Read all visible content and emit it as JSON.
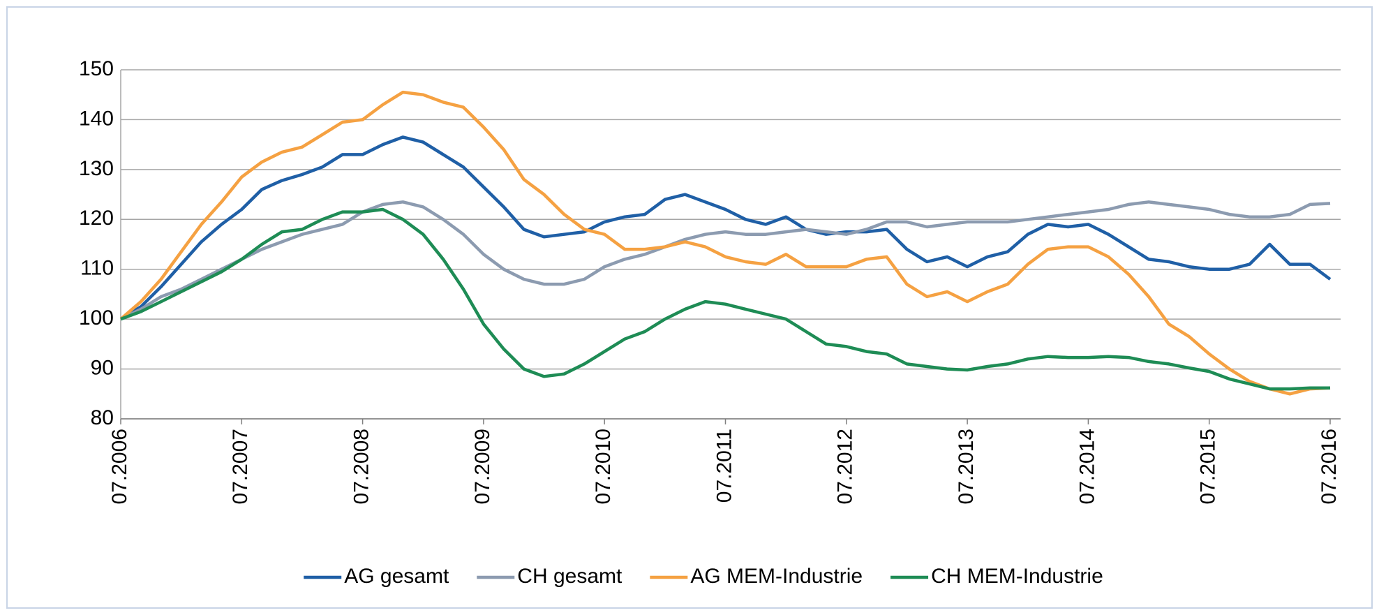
{
  "chart_data": {
    "type": "line",
    "categories": [
      "07.2006",
      null,
      null,
      null,
      null,
      null,
      "07.2007",
      null,
      null,
      null,
      null,
      null,
      "07.2008",
      null,
      null,
      null,
      null,
      null,
      "07.2009",
      null,
      null,
      null,
      null,
      null,
      "07.2010",
      null,
      null,
      null,
      null,
      null,
      "07.2011",
      null,
      null,
      null,
      null,
      null,
      "07.2012",
      null,
      null,
      null,
      null,
      null,
      "07.2013",
      null,
      null,
      null,
      null,
      null,
      "07.2014",
      null,
      null,
      null,
      null,
      null,
      "07.2015",
      null,
      null,
      null,
      null,
      null,
      "07.2016"
    ],
    "series": [
      {
        "name": "AG gesamt",
        "color": "#1f5fa6",
        "values": [
          100,
          102.5,
          106.5,
          111,
          115.5,
          119,
          122,
          126,
          127.8,
          129,
          130.5,
          133,
          133,
          135,
          136.5,
          135.5,
          133,
          130.5,
          126.5,
          122.5,
          118,
          116.5,
          117,
          117.5,
          119.5,
          120.5,
          121,
          124,
          125,
          123.5,
          122,
          120,
          119,
          120.5,
          118,
          117,
          117.5,
          117.5,
          118,
          114,
          111.5,
          112.5,
          110.5,
          112.5,
          113.5,
          117,
          119,
          118.5,
          119,
          117,
          114.5,
          112,
          111.5,
          110.5,
          110,
          110,
          111,
          115,
          111,
          111,
          108
        ]
      },
      {
        "name": "CH gesamt",
        "color": "#8c9bb0",
        "values": [
          100,
          102,
          104.5,
          106,
          108,
          110,
          112,
          114,
          115.5,
          117,
          118,
          119,
          121.5,
          123,
          123.5,
          122.5,
          120,
          117,
          113,
          110,
          108,
          107,
          107,
          108,
          110.5,
          112,
          113,
          114.5,
          116,
          117,
          117.5,
          117,
          117,
          117.5,
          118,
          117.5,
          117,
          118,
          119.5,
          119.5,
          118.5,
          119,
          119.5,
          119.5,
          119.5,
          120,
          120.5,
          121,
          121.5,
          122,
          123,
          123.5,
          123,
          122.5,
          122,
          121,
          120.5,
          120.5,
          121,
          123,
          123.2
        ]
      },
      {
        "name": "AG MEM-Industrie",
        "color": "#f5a142",
        "values": [
          100,
          103.5,
          108,
          113.5,
          119,
          123.5,
          128.5,
          131.5,
          133.5,
          134.5,
          137,
          139.5,
          140,
          143,
          145.5,
          145,
          143.5,
          142.5,
          138.5,
          134,
          128,
          125,
          121,
          118,
          117,
          114,
          114,
          114.5,
          115.5,
          114.5,
          112.5,
          111.5,
          111,
          113,
          110.5,
          110.5,
          110.5,
          112,
          112.5,
          107,
          104.5,
          105.5,
          103.5,
          105.5,
          107,
          111,
          114,
          114.5,
          114.5,
          112.5,
          109,
          104.5,
          99,
          96.5,
          93,
          90,
          87.5,
          86,
          85,
          86,
          86.2
        ]
      },
      {
        "name": "CH MEM-Industrie",
        "color": "#1e8c55",
        "values": [
          100,
          101.5,
          103.5,
          105.5,
          107.5,
          109.5,
          112,
          115,
          117.5,
          118,
          120,
          121.5,
          121.5,
          122,
          120,
          117,
          112,
          106,
          99,
          94,
          90,
          88.5,
          89,
          91,
          93.5,
          96,
          97.5,
          100,
          102,
          103.5,
          103,
          102,
          101,
          100,
          97.5,
          95,
          94.5,
          93.5,
          93,
          91,
          90.5,
          90,
          89.8,
          90.5,
          91,
          92,
          92.5,
          92.3,
          92.3,
          92.5,
          92.3,
          91.5,
          91,
          90.2,
          89.5,
          88,
          87,
          86,
          86,
          86.2,
          86.2
        ]
      }
    ],
    "ylim": [
      80,
      150
    ],
    "yticks": [
      80,
      90,
      100,
      110,
      120,
      130,
      140,
      150
    ],
    "grid": true,
    "legend": "bottom"
  }
}
